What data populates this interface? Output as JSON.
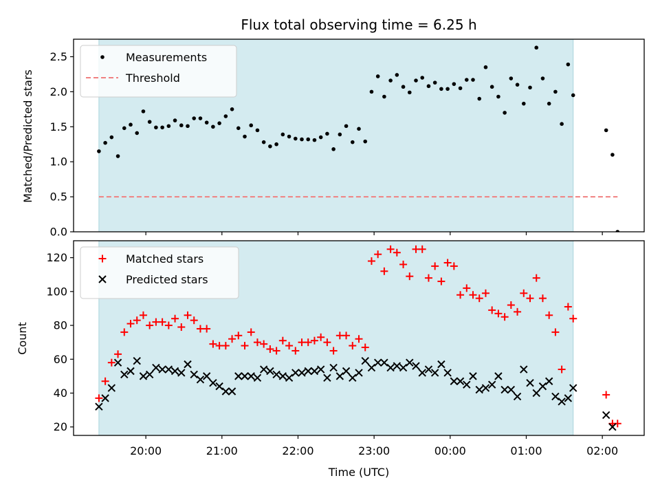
{
  "chart_data": [
    {
      "type": "scatter",
      "title": "Flux total observing time = 6.25 h",
      "ylabel": "Matched/Predicted stars",
      "ylim": [
        0,
        2.75
      ],
      "yticks": [
        0.0,
        0.5,
        1.0,
        1.5,
        2.0,
        2.5
      ],
      "ytick_labels": [
        "0.0",
        "0.5",
        "1.0",
        "1.5",
        "2.0",
        "2.5"
      ],
      "legend_position": "top-left",
      "shaded_interval": {
        "start": "19:23",
        "end": "01:37",
        "color": "#d4ebf0"
      },
      "threshold": {
        "name": "Threshold",
        "value": 0.5,
        "x_start": "19:23",
        "x_end": "02:12",
        "color": "#f08080"
      },
      "series": [
        {
          "name": "Measurements",
          "color": "#000000",
          "marker": "dot",
          "x": [
            "19:23",
            "19:28",
            "19:33",
            "19:38",
            "19:43",
            "19:48",
            "19:53",
            "19:58",
            "20:03",
            "20:08",
            "20:13",
            "20:18",
            "20:23",
            "20:28",
            "20:33",
            "20:38",
            "20:43",
            "20:48",
            "20:53",
            "20:58",
            "21:03",
            "21:08",
            "21:13",
            "21:18",
            "21:23",
            "21:28",
            "21:33",
            "21:38",
            "21:43",
            "21:48",
            "21:53",
            "21:58",
            "22:03",
            "22:08",
            "22:13",
            "22:18",
            "22:23",
            "22:28",
            "22:33",
            "22:38",
            "22:43",
            "22:48",
            "22:53",
            "22:58",
            "23:03",
            "23:08",
            "23:13",
            "23:18",
            "23:23",
            "23:28",
            "23:33",
            "23:38",
            "23:43",
            "23:48",
            "23:53",
            "23:58",
            "00:03",
            "00:08",
            "00:13",
            "00:18",
            "00:23",
            "00:28",
            "00:33",
            "00:38",
            "00:43",
            "00:48",
            "00:53",
            "00:58",
            "01:03",
            "01:08",
            "01:13",
            "01:18",
            "01:23",
            "01:28",
            "01:33",
            "01:37",
            "02:03",
            "02:08",
            "02:12"
          ],
          "y": [
            1.15,
            1.27,
            1.35,
            1.08,
            1.48,
            1.53,
            1.41,
            1.72,
            1.57,
            1.49,
            1.49,
            1.51,
            1.59,
            1.52,
            1.51,
            1.62,
            1.62,
            1.56,
            1.5,
            1.55,
            1.65,
            1.75,
            1.48,
            1.36,
            1.52,
            1.45,
            1.28,
            1.22,
            1.25,
            1.39,
            1.36,
            1.33,
            1.32,
            1.32,
            1.31,
            1.35,
            1.4,
            1.18,
            1.39,
            1.51,
            1.28,
            1.47,
            1.29,
            2.0,
            2.22,
            1.93,
            2.16,
            2.24,
            2.07,
            1.99,
            2.16,
            2.2,
            2.08,
            2.13,
            2.04,
            2.04,
            2.11,
            2.05,
            2.17,
            2.17,
            1.9,
            2.35,
            2.07,
            1.93,
            1.7,
            2.19,
            2.1,
            1.83,
            2.06,
            2.63,
            2.19,
            1.83,
            2.0,
            1.54,
            2.39,
            1.95,
            1.45,
            1.1,
            0.0
          ]
        }
      ]
    },
    {
      "type": "scatter",
      "xlabel": "Time (UTC)",
      "ylabel": "Count",
      "ylim": [
        15,
        130
      ],
      "xlim": [
        "19:03",
        "02:33"
      ],
      "xticks": [
        "20:00",
        "21:00",
        "22:00",
        "23:00",
        "00:00",
        "01:00",
        "02:00"
      ],
      "yticks": [
        20,
        40,
        60,
        80,
        100,
        120
      ],
      "ytick_labels": [
        "20",
        "40",
        "60",
        "80",
        "100",
        "120"
      ],
      "legend_position": "top-left",
      "shaded_interval": {
        "start": "19:23",
        "end": "01:37",
        "color": "#d4ebf0"
      },
      "series": [
        {
          "name": "Matched stars",
          "color": "#ff0000",
          "marker": "plus",
          "x": [
            "19:23",
            "19:28",
            "19:33",
            "19:38",
            "19:43",
            "19:48",
            "19:53",
            "19:58",
            "20:03",
            "20:08",
            "20:13",
            "20:18",
            "20:23",
            "20:28",
            "20:33",
            "20:38",
            "20:43",
            "20:48",
            "20:53",
            "20:58",
            "21:03",
            "21:08",
            "21:13",
            "21:18",
            "21:23",
            "21:28",
            "21:33",
            "21:38",
            "21:43",
            "21:48",
            "21:53",
            "21:58",
            "22:03",
            "22:08",
            "22:13",
            "22:18",
            "22:23",
            "22:28",
            "22:33",
            "22:38",
            "22:43",
            "22:48",
            "22:53",
            "22:58",
            "23:03",
            "23:08",
            "23:13",
            "23:18",
            "23:23",
            "23:28",
            "23:33",
            "23:38",
            "23:43",
            "23:48",
            "23:53",
            "23:58",
            "00:03",
            "00:08",
            "00:13",
            "00:18",
            "00:23",
            "00:28",
            "00:33",
            "00:38",
            "00:43",
            "00:48",
            "00:53",
            "00:58",
            "01:03",
            "01:08",
            "01:13",
            "01:18",
            "01:23",
            "01:28",
            "01:33",
            "01:37",
            "02:03",
            "02:08",
            "02:12"
          ],
          "y": [
            37,
            47,
            58,
            63,
            76,
            81,
            83,
            86,
            80,
            82,
            82,
            80,
            84,
            79,
            86,
            83,
            78,
            78,
            69,
            68,
            68,
            72,
            74,
            68,
            76,
            70,
            69,
            66,
            65,
            71,
            68,
            65,
            70,
            70,
            71,
            73,
            70,
            65,
            74,
            74,
            68,
            72,
            67,
            118,
            122,
            112,
            125,
            123,
            116,
            109,
            125,
            125,
            108,
            115,
            106,
            117,
            115,
            98,
            102,
            98,
            96,
            99,
            89,
            87,
            85,
            92,
            88,
            99,
            96,
            108,
            96,
            86,
            76,
            54,
            91,
            84,
            39,
            22,
            22
          ]
        },
        {
          "name": "Predicted stars",
          "color": "#000000",
          "marker": "x",
          "x": [
            "19:23",
            "19:28",
            "19:33",
            "19:38",
            "19:43",
            "19:48",
            "19:53",
            "19:58",
            "20:03",
            "20:08",
            "20:13",
            "20:18",
            "20:23",
            "20:28",
            "20:33",
            "20:38",
            "20:43",
            "20:48",
            "20:53",
            "20:58",
            "21:03",
            "21:08",
            "21:13",
            "21:18",
            "21:23",
            "21:28",
            "21:33",
            "21:38",
            "21:43",
            "21:48",
            "21:53",
            "21:58",
            "22:03",
            "22:08",
            "22:13",
            "22:18",
            "22:23",
            "22:28",
            "22:33",
            "22:38",
            "22:43",
            "22:48",
            "22:53",
            "22:58",
            "23:03",
            "23:08",
            "23:13",
            "23:18",
            "23:23",
            "23:28",
            "23:33",
            "23:38",
            "23:43",
            "23:48",
            "23:53",
            "23:58",
            "00:03",
            "00:08",
            "00:13",
            "00:18",
            "00:23",
            "00:28",
            "00:33",
            "00:38",
            "00:43",
            "00:48",
            "00:53",
            "00:58",
            "01:03",
            "01:08",
            "01:13",
            "01:18",
            "01:23",
            "01:28",
            "01:33",
            "01:37",
            "02:03",
            "02:08"
          ],
          "y": [
            32,
            37,
            43,
            58,
            51,
            53,
            59,
            50,
            51,
            55,
            54,
            54,
            53,
            52,
            57,
            51,
            48,
            50,
            46,
            44,
            41,
            41,
            50,
            50,
            50,
            49,
            54,
            53,
            51,
            50,
            49,
            52,
            52,
            53,
            53,
            54,
            49,
            55,
            50,
            53,
            49,
            52,
            59,
            55,
            58,
            58,
            55,
            56,
            55,
            58,
            56,
            52,
            54,
            52,
            57,
            52,
            47,
            47,
            45,
            50,
            42,
            43,
            45,
            50,
            42,
            42,
            38,
            54,
            46,
            40,
            44,
            47,
            38,
            35,
            37,
            43,
            27,
            20
          ]
        }
      ]
    }
  ]
}
